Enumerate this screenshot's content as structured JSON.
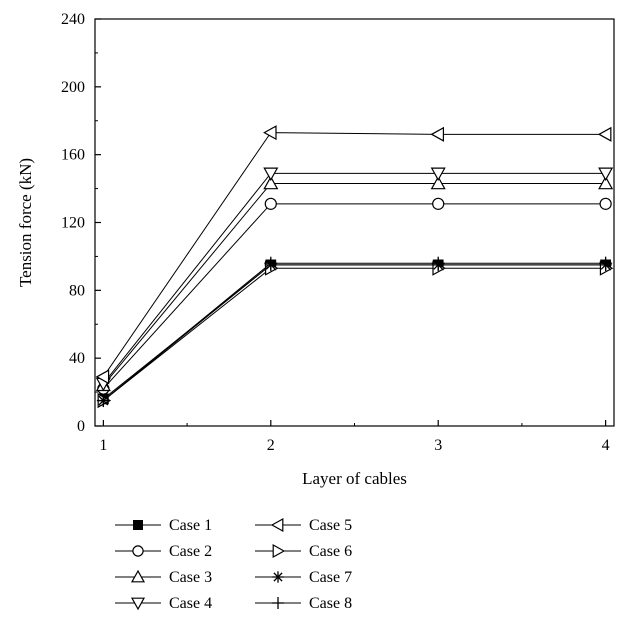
{
  "chart_data": {
    "type": "line",
    "xlabel": "Layer of cables",
    "ylabel": "Tension force (kN)",
    "x": [
      1,
      2,
      3,
      4
    ],
    "xticks": [
      1,
      2,
      3,
      4
    ],
    "xlim": [
      0.95,
      4.05
    ],
    "ylim": [
      0,
      240
    ],
    "yticks": [
      0,
      40,
      80,
      120,
      160,
      200,
      240
    ],
    "grid": false,
    "legend_position": "bottom",
    "series": [
      {
        "name": "Case 1",
        "marker": "filled-square",
        "values": [
          16,
          95,
          95,
          95
        ]
      },
      {
        "name": "Case 2",
        "marker": "circle",
        "values": [
          22,
          131,
          131,
          131
        ]
      },
      {
        "name": "Case 3",
        "marker": "triangle-up",
        "values": [
          24,
          143,
          143,
          143
        ]
      },
      {
        "name": "Case 4",
        "marker": "triangle-down",
        "values": [
          25,
          149,
          149,
          149
        ]
      },
      {
        "name": "Case 5",
        "marker": "triangle-left",
        "values": [
          29,
          173,
          172,
          172
        ]
      },
      {
        "name": "Case 6",
        "marker": "triangle-right",
        "values": [
          15,
          93,
          93,
          93
        ]
      },
      {
        "name": "Case 7",
        "marker": "asterisk",
        "values": [
          15,
          95,
          95,
          95
        ]
      },
      {
        "name": "Case 8",
        "marker": "plus",
        "values": [
          15,
          96,
          96,
          96
        ]
      }
    ]
  }
}
